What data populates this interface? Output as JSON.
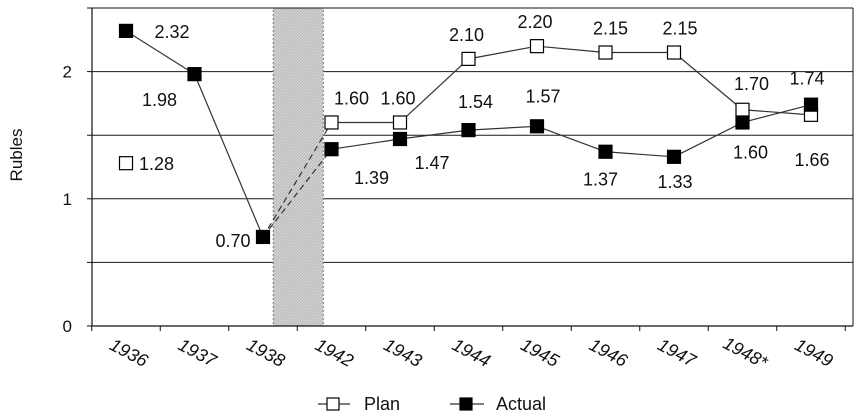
{
  "chart_data": {
    "type": "line",
    "ylabel": "Rubles",
    "ylim": [
      0,
      2.5
    ],
    "yticks": [
      "0",
      "1",
      "2"
    ],
    "categories": [
      "1936",
      "1937",
      "1938",
      "1942",
      "1943",
      "1944",
      "1945",
      "1946",
      "1947",
      "1948*",
      "1949"
    ],
    "grid": true,
    "shaded_gap_between": [
      "1938",
      "1942"
    ],
    "series": [
      {
        "name": "Plan",
        "marker": "open-square",
        "points": [
          {
            "x": "1942",
            "y": 1.6,
            "label": "1.60"
          },
          {
            "x": "1943",
            "y": 1.6,
            "label": "1.60"
          },
          {
            "x": "1944",
            "y": 2.1,
            "label": "2.10"
          },
          {
            "x": "1945",
            "y": 2.2,
            "label": "2.20"
          },
          {
            "x": "1946",
            "y": 2.15,
            "label": "2.15"
          },
          {
            "x": "1947",
            "y": 2.15,
            "label": "2.15"
          },
          {
            "x": "1948*",
            "y": 1.7,
            "label": "1.70"
          },
          {
            "x": "1949",
            "y": 1.66,
            "label": "1.66"
          }
        ],
        "standalone_points": [
          {
            "x": "1936",
            "y": 1.28,
            "label": "1.28"
          }
        ]
      },
      {
        "name": "Actual",
        "marker": "filled-square",
        "points": [
          {
            "x": "1936",
            "y": 2.32,
            "label": "2.32"
          },
          {
            "x": "1937",
            "y": 1.98,
            "label": "1.98"
          },
          {
            "x": "1938",
            "y": 0.7,
            "label": "0.70"
          },
          {
            "x": "1942",
            "y": 1.39,
            "label": "1.39"
          },
          {
            "x": "1943",
            "y": 1.47,
            "label": "1.47"
          },
          {
            "x": "1944",
            "y": 1.54,
            "label": "1.54"
          },
          {
            "x": "1945",
            "y": 1.57,
            "label": "1.57"
          },
          {
            "x": "1946",
            "y": 1.37,
            "label": "1.37"
          },
          {
            "x": "1947",
            "y": 1.33,
            "label": "1.33"
          },
          {
            "x": "1948*",
            "y": 1.6,
            "label": "1.60"
          },
          {
            "x": "1949",
            "y": 1.74,
            "label": "1.74"
          }
        ]
      }
    ],
    "legend": {
      "position": "bottom-center",
      "entries": [
        "Plan",
        "Actual"
      ]
    }
  }
}
